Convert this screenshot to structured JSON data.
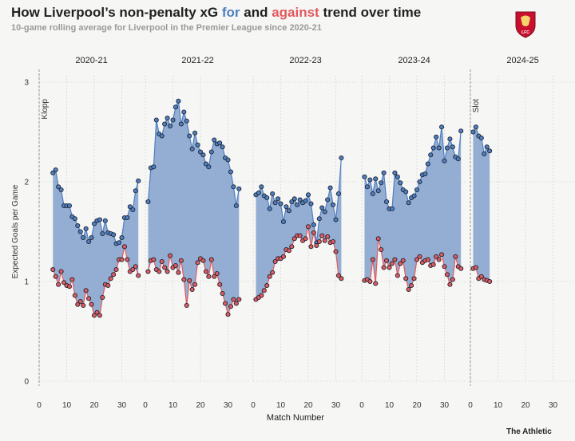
{
  "header": {
    "title_pre": "How Liverpool’s non-penalty xG ",
    "title_for": "for",
    "title_mid": " and ",
    "title_against": "against",
    "title_post": " trend over time",
    "subtitle": "10-game rolling average for Liverpool in the Premier League since 2020-21"
  },
  "crest": {
    "text": "LFC",
    "icon": "liverpool-crest-icon"
  },
  "credit": "The Athletic",
  "colors": {
    "for": "#4f7fc0",
    "against": "#e05a5f",
    "fill": "#8eaad1",
    "grid": "#cfcfcf"
  },
  "chart_data": {
    "type": "area",
    "ylabel": "Expected Goals per Game",
    "xlabel": "Match Number",
    "ylim": [
      0,
      3
    ],
    "yticks": [
      "0",
      "1",
      "2",
      "3"
    ],
    "xlim": [
      0,
      38
    ],
    "xticks": [
      "0",
      "10",
      "20",
      "30"
    ],
    "grid": true,
    "managers": [
      {
        "name": "Klopp",
        "panel": 0,
        "x": 0
      },
      {
        "name": "Slot",
        "panel": 4,
        "x": 0
      }
    ],
    "panels": [
      {
        "season": "2020-21",
        "x_start": 5,
        "for": [
          2.09,
          2.12,
          1.95,
          1.92,
          1.76,
          1.76,
          1.76,
          1.65,
          1.63,
          1.56,
          1.5,
          1.44,
          1.53,
          1.4,
          1.44,
          1.58,
          1.61,
          1.62,
          1.48,
          1.61,
          1.49,
          1.48,
          1.47,
          1.38,
          1.39,
          1.44,
          1.64,
          1.64,
          1.75,
          1.72,
          1.91,
          2.01
        ],
        "against": [
          1.12,
          1.05,
          0.97,
          1.1,
          0.99,
          0.96,
          0.95,
          1.02,
          0.86,
          0.77,
          0.8,
          0.76,
          0.91,
          0.83,
          0.77,
          0.66,
          0.69,
          0.66,
          0.84,
          0.97,
          0.96,
          1.03,
          1.07,
          1.12,
          1.22,
          1.22,
          1.35,
          1.22,
          1.1,
          1.12,
          1.15,
          1.06
        ]
      },
      {
        "season": "2021-22",
        "x_start": 1,
        "for": [
          1.8,
          2.14,
          2.15,
          2.62,
          2.48,
          2.46,
          2.58,
          2.64,
          2.56,
          2.62,
          2.75,
          2.81,
          2.58,
          2.7,
          2.61,
          2.46,
          2.33,
          2.49,
          2.37,
          2.3,
          2.27,
          2.18,
          2.15,
          2.3,
          2.42,
          2.38,
          2.39,
          2.35,
          2.24,
          2.22,
          2.1,
          1.95,
          1.76,
          1.93
        ],
        "against": [
          1.1,
          1.21,
          1.22,
          1.12,
          1.1,
          1.2,
          1.14,
          1.1,
          1.26,
          1.14,
          1.16,
          1.09,
          1.21,
          1.02,
          0.76,
          1.01,
          0.92,
          0.97,
          1.19,
          1.23,
          1.21,
          1.1,
          1.05,
          1.22,
          1.05,
          1.08,
          0.97,
          0.88,
          0.78,
          0.67,
          0.75,
          0.82,
          0.78,
          0.82
        ]
      },
      {
        "season": "2022-23",
        "x_start": 1,
        "for": [
          1.87,
          1.89,
          1.95,
          1.86,
          1.84,
          1.73,
          1.88,
          1.79,
          1.83,
          1.78,
          1.6,
          1.75,
          1.71,
          1.8,
          1.83,
          1.77,
          1.82,
          1.79,
          1.81,
          1.87,
          1.78,
          1.57,
          1.39,
          1.63,
          1.74,
          1.7,
          1.82,
          1.94,
          1.77,
          1.62,
          1.88,
          2.24
        ],
        "against": [
          0.82,
          0.84,
          0.86,
          0.91,
          0.96,
          1.05,
          1.09,
          1.2,
          1.23,
          1.23,
          1.25,
          1.32,
          1.31,
          1.35,
          1.43,
          1.46,
          1.46,
          1.41,
          1.43,
          1.55,
          1.35,
          1.49,
          1.36,
          1.4,
          1.46,
          1.41,
          1.45,
          1.39,
          1.4,
          1.3,
          1.06,
          1.03
        ]
      },
      {
        "season": "2023-24",
        "x_start": 1,
        "for": [
          2.05,
          1.95,
          2.02,
          1.88,
          2.03,
          1.91,
          1.99,
          2.09,
          1.8,
          1.73,
          1.73,
          2.09,
          2.05,
          1.99,
          1.92,
          1.9,
          1.79,
          1.84,
          1.86,
          1.92,
          2.0,
          2.07,
          2.08,
          2.18,
          2.27,
          2.34,
          2.45,
          2.34,
          2.55,
          2.21,
          2.34,
          2.43,
          2.35,
          2.25,
          2.23,
          2.51
        ],
        "against": [
          1.01,
          1.02,
          1.0,
          1.22,
          0.98,
          1.43,
          1.32,
          1.14,
          1.21,
          1.14,
          1.18,
          1.22,
          1.06,
          1.18,
          1.21,
          1.03,
          0.92,
          0.96,
          1.03,
          1.22,
          1.25,
          1.19,
          1.21,
          1.22,
          1.16,
          1.17,
          1.25,
          1.22,
          1.27,
          1.15,
          1.07,
          0.97,
          1.02,
          1.25,
          1.15,
          1.13
        ]
      },
      {
        "season": "2024-25",
        "x_start": 1,
        "for": [
          2.5,
          2.55,
          2.46,
          2.44,
          2.28,
          2.35,
          2.31
        ],
        "against": [
          1.13,
          1.14,
          1.03,
          1.05,
          1.02,
          1.01,
          1.0
        ]
      }
    ]
  }
}
